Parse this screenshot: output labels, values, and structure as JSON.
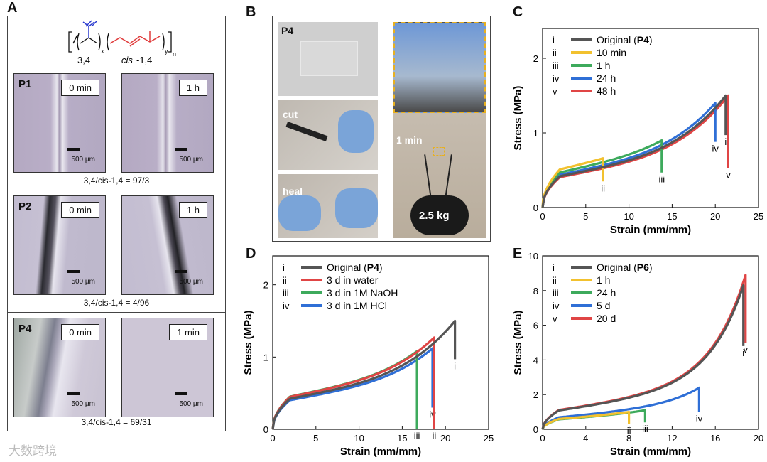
{
  "panel_letters": {
    "a": "A",
    "b": "B",
    "c": "C",
    "d": "D",
    "e": "E"
  },
  "panelA": {
    "chem": {
      "unit1": "3,4",
      "x": "x",
      "unit2": "cis",
      "unit2b": "-1,4",
      "y": "y",
      "n": "n"
    },
    "sections": [
      {
        "label": "P1",
        "t1": "0 min",
        "t2": "1 h",
        "scale": "500 μm",
        "ratio": "3,4/cis-1,4 = 97/3"
      },
      {
        "label": "P2",
        "t1": "0 min",
        "t2": "1 h",
        "scale": "500 μm",
        "ratio": "3,4/cis-1,4 = 4/96"
      },
      {
        "label": "P4",
        "t1": "0 min",
        "t2": "1 min",
        "scale": "500 μm",
        "ratio": "3,4/cis-1,4 = 69/31"
      }
    ]
  },
  "panelB": {
    "label": "P4",
    "cut": "cut",
    "heal": "heal",
    "time": "1 min",
    "weight": "2.5 kg"
  },
  "chart_data": [
    {
      "id": "C",
      "type": "line",
      "xlabel": "Strain (mm/mm)",
      "ylabel": "Stress (MPa)",
      "xlim": [
        0,
        25
      ],
      "ylim": [
        0,
        2.4
      ],
      "xticks": [
        0,
        5,
        10,
        15,
        20,
        25
      ],
      "yticks": [
        0,
        1,
        2
      ],
      "legend": "top-left",
      "series": [
        {
          "roman": "i",
          "name": "Original (",
          "bold": "P4",
          "suffix": ")",
          "color": "#555555",
          "end_x": 21.2,
          "end_y": 1.5,
          "drop_to": 0.97,
          "shape": "p4"
        },
        {
          "roman": "ii",
          "name": "10 min",
          "color": "#f2c12e",
          "end_x": 7.0,
          "end_y": 0.66,
          "drop_to": 0.35,
          "shape": "p4"
        },
        {
          "roman": "iii",
          "name": "1 h",
          "color": "#3daa5c",
          "end_x": 13.8,
          "end_y": 0.9,
          "drop_to": 0.47,
          "shape": "p4"
        },
        {
          "roman": "iv",
          "name": "24 h",
          "color": "#2f6fd6",
          "end_x": 20.0,
          "end_y": 1.4,
          "drop_to": 0.88,
          "shape": "p4"
        },
        {
          "roman": "v",
          "name": "48 h",
          "color": "#e04545",
          "end_x": 21.5,
          "end_y": 1.5,
          "drop_to": 0.53,
          "shape": "p4"
        }
      ]
    },
    {
      "id": "D",
      "type": "line",
      "xlabel": "Strain (mm/mm)",
      "ylabel": "Stress (MPa)",
      "xlim": [
        0,
        25
      ],
      "ylim": [
        0,
        2.4
      ],
      "xticks": [
        0,
        5,
        10,
        15,
        20,
        25
      ],
      "yticks": [
        0,
        1,
        2
      ],
      "legend": "top-left",
      "series": [
        {
          "roman": "i",
          "name": "Original (",
          "bold": "P4",
          "suffix": ")",
          "color": "#555555",
          "end_x": 21.1,
          "end_y": 1.5,
          "drop_to": 0.97,
          "shape": "p4"
        },
        {
          "roman": "ii",
          "name": "3 d in water",
          "color": "#e04545",
          "end_x": 18.7,
          "end_y": 1.27,
          "drop_to": 0.0,
          "shape": "p4low"
        },
        {
          "roman": "iii",
          "name": "3 d in 1M NaOH",
          "color": "#3daa5c",
          "end_x": 16.7,
          "end_y": 1.08,
          "drop_to": 0.0,
          "shape": "p4"
        },
        {
          "roman": "iv",
          "name": "3 d in 1M HCl",
          "color": "#2f6fd6",
          "end_x": 18.5,
          "end_y": 1.12,
          "drop_to": 0.3,
          "shape": "p4"
        }
      ]
    },
    {
      "id": "E",
      "type": "line",
      "xlabel": "Strain (mm/mm)",
      "ylabel": "Stress (MPa)",
      "xlim": [
        0,
        20
      ],
      "ylim": [
        0,
        10
      ],
      "xticks": [
        0,
        4,
        8,
        12,
        16,
        20
      ],
      "yticks": [
        0,
        2,
        4,
        6,
        8,
        10
      ],
      "legend": "top-left",
      "series": [
        {
          "roman": "i",
          "name": "Original (",
          "bold": "P6",
          "suffix": ")",
          "color": "#555555",
          "end_x": 18.6,
          "end_y": 8.3,
          "drop_to": 4.8,
          "shape": "p6"
        },
        {
          "roman": "ii",
          "name": "1 h",
          "color": "#f2c12e",
          "end_x": 8.0,
          "end_y": 1.0,
          "drop_to": 0.3,
          "shape": "p6"
        },
        {
          "roman": "iii",
          "name": "24 h",
          "color": "#3daa5c",
          "end_x": 9.5,
          "end_y": 1.1,
          "drop_to": 0.4,
          "shape": "p6"
        },
        {
          "roman": "iv",
          "name": "5 d",
          "color": "#2f6fd6",
          "end_x": 14.5,
          "end_y": 2.4,
          "drop_to": 1.0,
          "shape": "p6"
        },
        {
          "roman": "v",
          "name": "20 d",
          "color": "#e04545",
          "end_x": 18.8,
          "end_y": 8.9,
          "drop_to": 5.0,
          "shape": "p6"
        }
      ]
    }
  ],
  "watermark": "大数跨境"
}
